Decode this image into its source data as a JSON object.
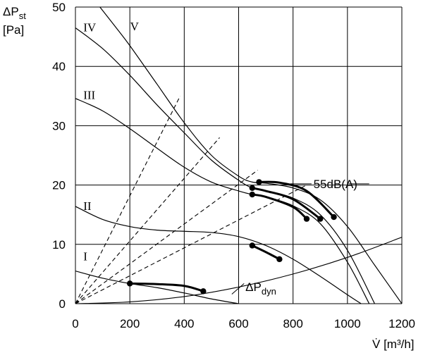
{
  "chart_data": {
    "type": "line",
    "title": "",
    "ylabel": {
      "symbol": "ΔP",
      "sub": "st",
      "unit": "[Pa]"
    },
    "xlabel": {
      "symbol": "V̇",
      "unit": "[m³/h]"
    },
    "xlim": [
      0,
      1200
    ],
    "ylim": [
      0,
      50
    ],
    "xticks": [
      0,
      200,
      400,
      600,
      800,
      1000,
      1200
    ],
    "yticks": [
      0,
      10,
      20,
      30,
      40,
      50
    ],
    "grid": true,
    "fan_curves": [
      {
        "name": "I",
        "x": [
          0,
          100,
          200,
          300,
          400,
          500,
          600
        ],
        "y": [
          5.5,
          4.3,
          3.4,
          2.7,
          1.8,
          0.8,
          0
        ]
      },
      {
        "name": "II",
        "x": [
          0,
          100,
          200,
          300,
          400,
          500,
          600,
          700,
          800,
          900,
          1000,
          1050
        ],
        "y": [
          16.4,
          14.2,
          13.0,
          12.4,
          12.2,
          12.0,
          11.3,
          9.8,
          7.5,
          4.6,
          1.5,
          0
        ]
      },
      {
        "name": "III",
        "x": [
          0,
          100,
          200,
          300,
          400,
          500,
          600,
          650,
          700,
          800,
          900,
          1000,
          1080
        ],
        "y": [
          34.6,
          32.5,
          29.5,
          26.2,
          23.0,
          20.5,
          19.0,
          18.4,
          18.0,
          16.5,
          13.5,
          7.0,
          0
        ]
      },
      {
        "name": "IV",
        "x": [
          0,
          100,
          200,
          300,
          400,
          500,
          600,
          650,
          700,
          800,
          900,
          1000,
          1100
        ],
        "y": [
          46.5,
          43.0,
          38.5,
          33.5,
          28.8,
          24.2,
          20.8,
          19.5,
          19.0,
          17.8,
          15.0,
          9.0,
          0
        ]
      },
      {
        "name": "V",
        "x": [
          90,
          150,
          200,
          300,
          400,
          500,
          600,
          650,
          700,
          800,
          900,
          1000,
          1100,
          1200
        ],
        "y": [
          50.0,
          46.5,
          43.5,
          37.0,
          30.5,
          25.0,
          21.5,
          20.5,
          20.3,
          19.5,
          17.5,
          13.0,
          6.5,
          0
        ]
      }
    ],
    "system_curves": [
      {
        "x": [
          0,
          385
        ],
        "y": [
          0,
          35
        ]
      },
      {
        "x": [
          0,
          530
        ],
        "y": [
          0,
          28
        ]
      },
      {
        "x": [
          0,
          670
        ],
        "y": [
          0,
          22.5
        ]
      },
      {
        "x": [
          0,
          850
        ],
        "y": [
          0,
          20
        ]
      }
    ],
    "dynamic_pressure": {
      "label": "ΔP",
      "label_sub": "dyn",
      "x": [
        0,
        200,
        400,
        600,
        800,
        1000,
        1200
      ],
      "y": [
        0,
        0.3,
        1.2,
        2.8,
        5.0,
        7.8,
        11.2
      ]
    },
    "noise_line": {
      "label": "55dB(A)",
      "segments": [
        {
          "x": [
            200,
            300,
            400,
            470
          ],
          "y": [
            3.4,
            3.3,
            3.0,
            2.1
          ]
        },
        {
          "x": [
            650,
            700,
            750
          ],
          "y": [
            9.8,
            8.7,
            7.5
          ]
        },
        {
          "x": [
            650,
            700,
            800,
            850
          ],
          "y": [
            18.4,
            18.0,
            16.3,
            14.3
          ]
        },
        {
          "x": [
            650,
            700,
            800,
            900
          ],
          "y": [
            19.5,
            19.0,
            17.6,
            14.3
          ]
        },
        {
          "x": [
            675,
            750,
            850,
            950
          ],
          "y": [
            20.5,
            20.4,
            19.0,
            14.6
          ]
        }
      ],
      "points": [
        [
          200,
          3.4
        ],
        [
          470,
          2.1
        ],
        [
          650,
          9.8
        ],
        [
          750,
          7.5
        ],
        [
          650,
          18.4
        ],
        [
          850,
          14.3
        ],
        [
          650,
          19.5
        ],
        [
          900,
          14.3
        ],
        [
          675,
          20.5
        ],
        [
          950,
          14.6
        ]
      ]
    }
  }
}
